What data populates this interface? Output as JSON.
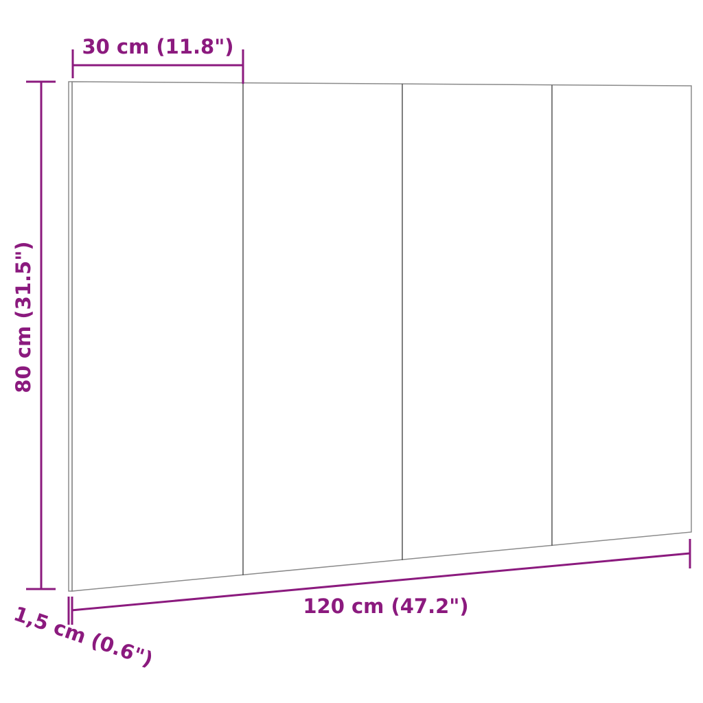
{
  "dimensions": {
    "panel_width": "30 cm (11.8\")",
    "height": "80 cm (31.5\")",
    "total_width": "120 cm (47.2\")",
    "thickness": "1,5 cm (0.6\")"
  },
  "colors": {
    "dimension": "#8b1a7e",
    "outline": "#8a8a8a"
  },
  "panels": 4
}
